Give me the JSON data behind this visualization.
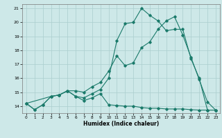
{
  "xlabel": "Humidex (Indice chaleur)",
  "ylabel": "",
  "background_color": "#cde8e8",
  "grid_color": "#aacece",
  "line_color": "#1a7a6a",
  "xlim": [
    -0.5,
    23.5
  ],
  "ylim": [
    13.5,
    21.3
  ],
  "xticks": [
    0,
    1,
    2,
    3,
    4,
    5,
    6,
    7,
    8,
    9,
    10,
    11,
    12,
    13,
    14,
    15,
    16,
    17,
    18,
    19,
    20,
    21,
    22,
    23
  ],
  "yticks": [
    14,
    15,
    16,
    17,
    18,
    19,
    20,
    21
  ],
  "line1_x": [
    0,
    1,
    2,
    3,
    4,
    5,
    6,
    7,
    8,
    9,
    10,
    11,
    12,
    13,
    14,
    15,
    16,
    17,
    18,
    19,
    20,
    21,
    22,
    23
  ],
  "line1_y": [
    14.2,
    13.75,
    14.1,
    14.7,
    14.8,
    15.1,
    14.7,
    14.4,
    14.6,
    14.9,
    14.1,
    14.05,
    14.0,
    14.0,
    13.9,
    13.85,
    13.85,
    13.8,
    13.8,
    13.8,
    13.75,
    13.72,
    13.72,
    13.72
  ],
  "line2_x": [
    0,
    1,
    2,
    3,
    4,
    5,
    6,
    7,
    8,
    9,
    10,
    11,
    12,
    13,
    14,
    15,
    16,
    17,
    18,
    19,
    20,
    21,
    22,
    23
  ],
  "line2_y": [
    14.2,
    13.75,
    14.1,
    14.7,
    14.8,
    15.1,
    15.1,
    15.0,
    15.4,
    15.7,
    16.5,
    17.6,
    16.9,
    17.1,
    18.2,
    18.6,
    19.5,
    20.1,
    20.4,
    19.1,
    17.5,
    15.9,
    14.3,
    13.72
  ],
  "line3_x": [
    0,
    3,
    4,
    5,
    6,
    7,
    8,
    9,
    10,
    11,
    12,
    13,
    14,
    15,
    16,
    17,
    18,
    19,
    20,
    21,
    22,
    23
  ],
  "line3_y": [
    14.2,
    14.7,
    14.8,
    15.1,
    14.7,
    14.6,
    14.9,
    15.2,
    16.0,
    18.7,
    19.9,
    20.0,
    21.0,
    20.5,
    20.1,
    19.4,
    19.5,
    19.5,
    17.4,
    16.0,
    13.72,
    13.72
  ]
}
